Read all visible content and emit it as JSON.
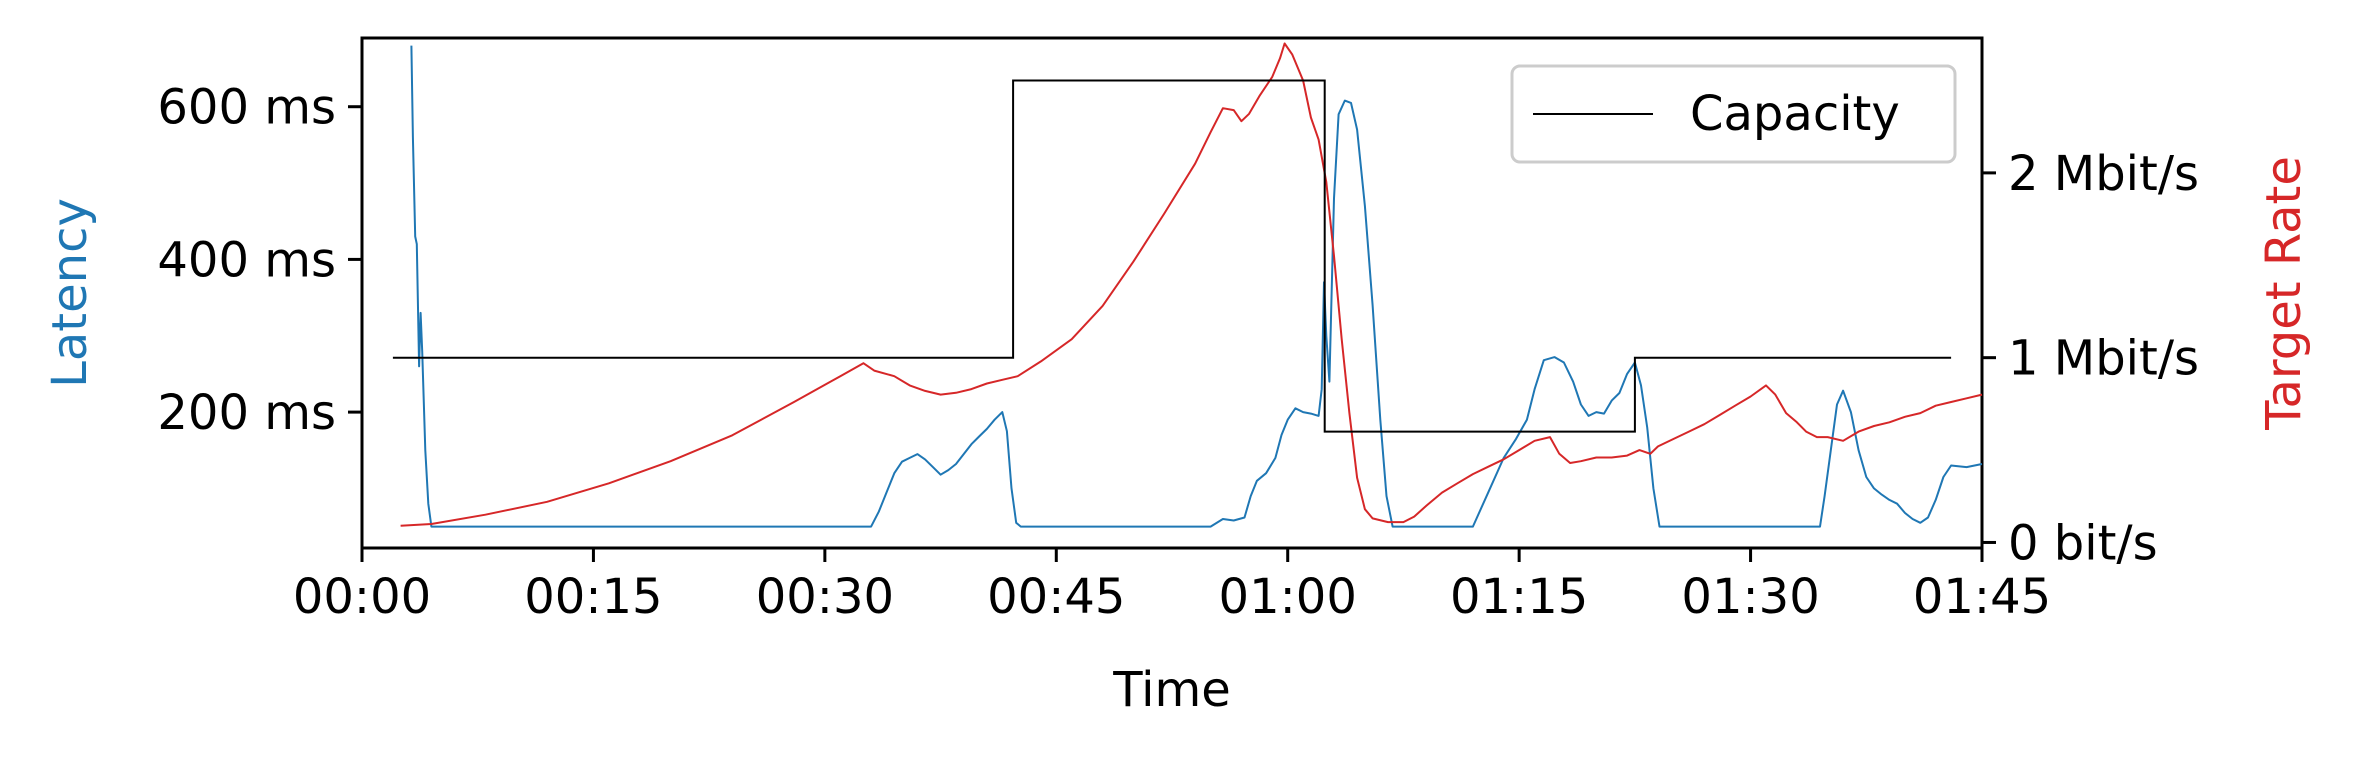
{
  "chart_data": {
    "type": "line",
    "title": "",
    "xlabel": "Time",
    "ylabel_left": "Latency",
    "ylabel_right": "Target Rate",
    "x_unit": "seconds",
    "xlim": [
      0,
      105
    ],
    "ylim_left": [
      22,
      690
    ],
    "ylim_right": [
      -0.03,
      2.73
    ],
    "x_ticks": [
      {
        "value": 0,
        "label": "00:00"
      },
      {
        "value": 15,
        "label": "00:15"
      },
      {
        "value": 30,
        "label": "00:30"
      },
      {
        "value": 45,
        "label": "00:45"
      },
      {
        "value": 60,
        "label": "01:00"
      },
      {
        "value": 75,
        "label": "01:15"
      },
      {
        "value": 90,
        "label": "01:30"
      },
      {
        "value": 105,
        "label": "01:45"
      }
    ],
    "left_ticks": [
      {
        "value": 200,
        "label": "200 ms"
      },
      {
        "value": 400,
        "label": "400 ms"
      },
      {
        "value": 600,
        "label": "600 ms"
      }
    ],
    "right_ticks": [
      {
        "value": 0,
        "label": "0 bit/s"
      },
      {
        "value": 1,
        "label": "1 Mbit/s"
      },
      {
        "value": 2,
        "label": "2 Mbit/s"
      }
    ],
    "legend": {
      "position": "upper right",
      "entries": [
        "Capacity"
      ]
    },
    "grid": false,
    "colors": {
      "latency": "#1f77b4",
      "target_rate": "#d62728",
      "capacity": "#000000"
    },
    "series": [
      {
        "key": "latency",
        "axis": "left",
        "points": [
          [
            3.2,
            680
          ],
          [
            3.3,
            560
          ],
          [
            3.45,
            430
          ],
          [
            3.55,
            420
          ],
          [
            3.7,
            260
          ],
          [
            3.8,
            330
          ],
          [
            3.9,
            280
          ],
          [
            4.1,
            150
          ],
          [
            4.3,
            80
          ],
          [
            4.5,
            50
          ],
          [
            5,
            50
          ],
          [
            10,
            50
          ],
          [
            20,
            50
          ],
          [
            30,
            50
          ],
          [
            33,
            50
          ],
          [
            33.5,
            70
          ],
          [
            34,
            95
          ],
          [
            34.5,
            120
          ],
          [
            35,
            135
          ],
          [
            35.5,
            140
          ],
          [
            36,
            145
          ],
          [
            36.5,
            138
          ],
          [
            37,
            128
          ],
          [
            37.5,
            118
          ],
          [
            38,
            124
          ],
          [
            38.5,
            132
          ],
          [
            39,
            145
          ],
          [
            39.5,
            158
          ],
          [
            40,
            168
          ],
          [
            40.5,
            178
          ],
          [
            41,
            190
          ],
          [
            41.5,
            200
          ],
          [
            41.8,
            175
          ],
          [
            42.1,
            100
          ],
          [
            42.4,
            55
          ],
          [
            42.7,
            50
          ],
          [
            50,
            50
          ],
          [
            55,
            50
          ],
          [
            55.8,
            60
          ],
          [
            56.5,
            58
          ],
          [
            57.2,
            62
          ],
          [
            57.6,
            90
          ],
          [
            58,
            110
          ],
          [
            58.6,
            120
          ],
          [
            59.2,
            140
          ],
          [
            59.6,
            170
          ],
          [
            60,
            190
          ],
          [
            60.5,
            205
          ],
          [
            61,
            200
          ],
          [
            61.5,
            198
          ],
          [
            62,
            195
          ],
          [
            62.2,
            230
          ],
          [
            62.35,
            370
          ],
          [
            62.5,
            300
          ],
          [
            62.7,
            240
          ],
          [
            63,
            480
          ],
          [
            63.3,
            590
          ],
          [
            63.7,
            608
          ],
          [
            64.1,
            605
          ],
          [
            64.5,
            570
          ],
          [
            65,
            470
          ],
          [
            65.5,
            340
          ],
          [
            66,
            190
          ],
          [
            66.4,
            90
          ],
          [
            66.8,
            50
          ],
          [
            67.5,
            50
          ],
          [
            70,
            50
          ],
          [
            72,
            50
          ],
          [
            73,
            95
          ],
          [
            74,
            140
          ],
          [
            74.8,
            165
          ],
          [
            75.5,
            190
          ],
          [
            76,
            230
          ],
          [
            76.6,
            268
          ],
          [
            77.3,
            272
          ],
          [
            77.9,
            265
          ],
          [
            78.5,
            240
          ],
          [
            79,
            210
          ],
          [
            79.5,
            195
          ],
          [
            80,
            200
          ],
          [
            80.5,
            198
          ],
          [
            81,
            215
          ],
          [
            81.5,
            225
          ],
          [
            82,
            250
          ],
          [
            82.5,
            265
          ],
          [
            82.9,
            235
          ],
          [
            83.3,
            180
          ],
          [
            83.7,
            100
          ],
          [
            84.1,
            50
          ],
          [
            90,
            50
          ],
          [
            94.5,
            50
          ],
          [
            94.8,
            90
          ],
          [
            95.2,
            150
          ],
          [
            95.6,
            210
          ],
          [
            96,
            228
          ],
          [
            96.5,
            200
          ],
          [
            97,
            150
          ],
          [
            97.5,
            115
          ],
          [
            98,
            100
          ],
          [
            98.5,
            92
          ],
          [
            99,
            85
          ],
          [
            99.5,
            80
          ],
          [
            100,
            68
          ],
          [
            100.5,
            60
          ],
          [
            101,
            55
          ],
          [
            101.5,
            62
          ],
          [
            102,
            85
          ],
          [
            102.5,
            115
          ],
          [
            103,
            130
          ],
          [
            104,
            128
          ],
          [
            105,
            132
          ]
        ]
      },
      {
        "key": "target_rate",
        "axis": "right",
        "points": [
          [
            2.5,
            0.09
          ],
          [
            4.5,
            0.1
          ],
          [
            8,
            0.15
          ],
          [
            12,
            0.22
          ],
          [
            16,
            0.32
          ],
          [
            20,
            0.44
          ],
          [
            24,
            0.58
          ],
          [
            28,
            0.76
          ],
          [
            31,
            0.9
          ],
          [
            32.5,
            0.97
          ],
          [
            33.2,
            0.93
          ],
          [
            34.5,
            0.9
          ],
          [
            35.5,
            0.85
          ],
          [
            36.5,
            0.82
          ],
          [
            37.5,
            0.8
          ],
          [
            38.5,
            0.81
          ],
          [
            39.5,
            0.83
          ],
          [
            40.5,
            0.86
          ],
          [
            41.5,
            0.88
          ],
          [
            42.5,
            0.9
          ],
          [
            44,
            0.98
          ],
          [
            46,
            1.1
          ],
          [
            48,
            1.28
          ],
          [
            50,
            1.52
          ],
          [
            52,
            1.78
          ],
          [
            54,
            2.05
          ],
          [
            55,
            2.22
          ],
          [
            55.8,
            2.35
          ],
          [
            56.5,
            2.34
          ],
          [
            57,
            2.28
          ],
          [
            57.5,
            2.32
          ],
          [
            58.2,
            2.42
          ],
          [
            59,
            2.52
          ],
          [
            59.5,
            2.62
          ],
          [
            59.8,
            2.7
          ],
          [
            60.3,
            2.64
          ],
          [
            61,
            2.5
          ],
          [
            61.5,
            2.3
          ],
          [
            62,
            2.18
          ],
          [
            62.5,
            1.95
          ],
          [
            63,
            1.55
          ],
          [
            63.5,
            1.1
          ],
          [
            64,
            0.7
          ],
          [
            64.5,
            0.35
          ],
          [
            65,
            0.18
          ],
          [
            65.5,
            0.13
          ],
          [
            66.5,
            0.11
          ],
          [
            67.5,
            0.11
          ],
          [
            68.2,
            0.14
          ],
          [
            69,
            0.2
          ],
          [
            70,
            0.27
          ],
          [
            71,
            0.32
          ],
          [
            72,
            0.37
          ],
          [
            73,
            0.41
          ],
          [
            74,
            0.45
          ],
          [
            75,
            0.5
          ],
          [
            76,
            0.55
          ],
          [
            77,
            0.57
          ],
          [
            77.6,
            0.48
          ],
          [
            78.3,
            0.43
          ],
          [
            79,
            0.44
          ],
          [
            80,
            0.46
          ],
          [
            81,
            0.46
          ],
          [
            82,
            0.47
          ],
          [
            82.8,
            0.5
          ],
          [
            83.5,
            0.48
          ],
          [
            84,
            0.52
          ],
          [
            85,
            0.56
          ],
          [
            86,
            0.6
          ],
          [
            87,
            0.64
          ],
          [
            88,
            0.69
          ],
          [
            89,
            0.74
          ],
          [
            90,
            0.79
          ],
          [
            91,
            0.85
          ],
          [
            91.6,
            0.8
          ],
          [
            92.3,
            0.7
          ],
          [
            93,
            0.65
          ],
          [
            93.6,
            0.6
          ],
          [
            94.3,
            0.57
          ],
          [
            95,
            0.57
          ],
          [
            96,
            0.55
          ],
          [
            97,
            0.6
          ],
          [
            98,
            0.63
          ],
          [
            99,
            0.65
          ],
          [
            100,
            0.68
          ],
          [
            101,
            0.7
          ],
          [
            102,
            0.74
          ],
          [
            103,
            0.76
          ],
          [
            104,
            0.78
          ],
          [
            105,
            0.8
          ]
        ]
      },
      {
        "key": "capacity",
        "axis": "right",
        "name": "Capacity",
        "points": [
          [
            2,
            1
          ],
          [
            42.2,
            1
          ],
          [
            42.2,
            2.5
          ],
          [
            62.4,
            2.5
          ],
          [
            62.4,
            0.6
          ],
          [
            82.5,
            0.6
          ],
          [
            82.5,
            1
          ],
          [
            103,
            1
          ]
        ]
      }
    ]
  }
}
